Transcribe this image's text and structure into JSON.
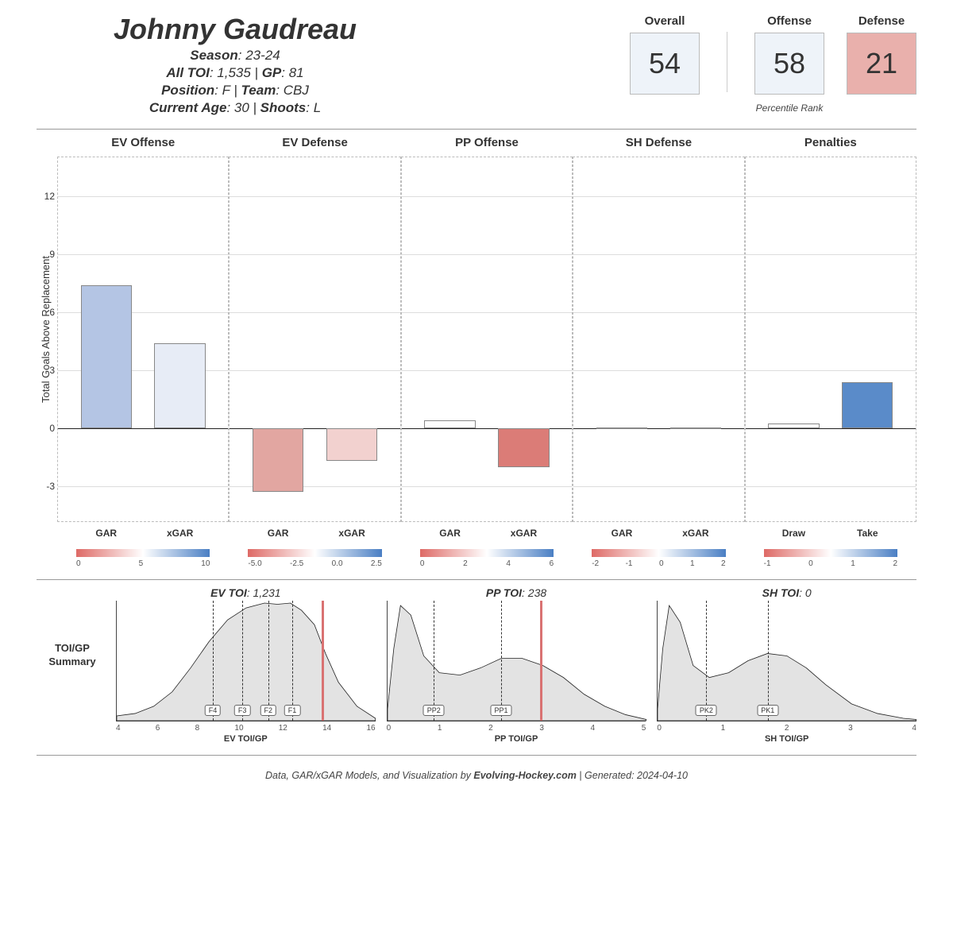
{
  "header": {
    "name": "Johnny Gaudreau",
    "lines": [
      [
        {
          "k": "Season",
          "v": "23-24"
        }
      ],
      [
        {
          "k": "All TOI",
          "v": "1,535"
        },
        {
          "k": "GP",
          "v": "81"
        }
      ],
      [
        {
          "k": "Position",
          "v": "F"
        },
        {
          "k": "Team",
          "v": "CBJ"
        }
      ],
      [
        {
          "k": "Current Age",
          "v": "30"
        },
        {
          "k": "Shoots",
          "v": "L"
        }
      ]
    ]
  },
  "ranks": {
    "sub": "Percentile Rank",
    "items": [
      {
        "label": "Overall",
        "value": "54",
        "bg": "#eef3f9"
      },
      {
        "label": "Offense",
        "value": "58",
        "bg": "#eef3f9"
      },
      {
        "label": "Defense",
        "value": "21",
        "bg": "#e9b0ac"
      }
    ]
  },
  "bar_chart": {
    "y_label": "Total Goals Above Replacement",
    "y_min": -4.8,
    "y_max": 14.0,
    "y_ticks": [
      -3,
      0,
      3,
      6,
      9,
      12
    ],
    "panels": [
      {
        "title": "EV Offense",
        "cats": [
          "GAR",
          "xGAR"
        ],
        "bars": [
          {
            "v": 7.4,
            "c": "#b4c5e4"
          },
          {
            "v": 4.4,
            "c": "#e7ecf6"
          }
        ]
      },
      {
        "title": "EV Defense",
        "cats": [
          "GAR",
          "xGAR"
        ],
        "bars": [
          {
            "v": -3.3,
            "c": "#e2a6a1"
          },
          {
            "v": -1.7,
            "c": "#f2d1cf"
          }
        ]
      },
      {
        "title": "PP Offense",
        "cats": [
          "GAR",
          "xGAR"
        ],
        "bars": [
          {
            "v": 0.4,
            "c": "#fefefe"
          },
          {
            "v": -2.0,
            "c": "#db7c77"
          }
        ]
      },
      {
        "title": "SH Defense",
        "cats": [
          "GAR",
          "xGAR"
        ],
        "bars": [
          {
            "v": 0.05,
            "c": "#fefefe"
          },
          {
            "v": 0.05,
            "c": "#fefefe"
          }
        ]
      },
      {
        "title": "Penalties",
        "cats": [
          "Draw",
          "Take"
        ],
        "bars": [
          {
            "v": 0.25,
            "c": "#fefefe"
          },
          {
            "v": 2.4,
            "c": "#5a8bc9"
          }
        ]
      }
    ],
    "gradients": [
      {
        "ticks": [
          "0",
          "5",
          "10"
        ]
      },
      {
        "ticks": [
          "-5.0",
          "-2.5",
          "0.0",
          "2.5"
        ]
      },
      {
        "ticks": [
          "0",
          "2",
          "4",
          "6"
        ]
      },
      {
        "ticks": [
          "-2",
          "-1",
          "0",
          "1",
          "2"
        ]
      },
      {
        "ticks": [
          "-1",
          "0",
          "1",
          "2"
        ]
      }
    ]
  },
  "density": {
    "row_label": "TOI/GP Summary",
    "panels": [
      {
        "title_k": "EV TOI",
        "title_v": "1,231",
        "x_min": 4,
        "x_max": 18,
        "x_ticks": [
          "4",
          "6",
          "8",
          "10",
          "12",
          "14",
          "16"
        ],
        "x_label": "EV TOI/GP",
        "curve": [
          [
            4,
            4
          ],
          [
            5,
            6
          ],
          [
            6,
            12
          ],
          [
            7,
            24
          ],
          [
            8,
            44
          ],
          [
            9,
            66
          ],
          [
            10,
            84
          ],
          [
            11,
            94
          ],
          [
            12,
            98
          ],
          [
            12.7,
            97
          ],
          [
            13.4,
            98
          ],
          [
            14,
            92
          ],
          [
            14.7,
            80
          ],
          [
            15.3,
            56
          ],
          [
            16,
            32
          ],
          [
            17,
            12
          ],
          [
            18,
            2
          ]
        ],
        "vlines": [
          {
            "x": 9.2,
            "lab": "F4"
          },
          {
            "x": 10.8,
            "lab": "F3"
          },
          {
            "x": 12.2,
            "lab": "F2"
          },
          {
            "x": 13.5,
            "lab": "F1"
          }
        ],
        "marker_x": 15.1
      },
      {
        "title_k": "PP TOI",
        "title_v": "238",
        "x_min": 0,
        "x_max": 5,
        "x_ticks": [
          "0",
          "1",
          "2",
          "3",
          "4",
          "5"
        ],
        "x_label": "PP TOI/GP",
        "curve": [
          [
            0,
            10
          ],
          [
            0.12,
            60
          ],
          [
            0.25,
            96
          ],
          [
            0.45,
            88
          ],
          [
            0.7,
            54
          ],
          [
            1.0,
            40
          ],
          [
            1.4,
            38
          ],
          [
            1.8,
            44
          ],
          [
            2.2,
            52
          ],
          [
            2.6,
            52
          ],
          [
            3.0,
            46
          ],
          [
            3.4,
            36
          ],
          [
            3.8,
            22
          ],
          [
            4.2,
            12
          ],
          [
            4.6,
            5
          ],
          [
            5,
            1
          ]
        ],
        "vlines": [
          {
            "x": 0.9,
            "lab": "PP2"
          },
          {
            "x": 2.2,
            "lab": "PP1"
          }
        ],
        "marker_x": 2.95
      },
      {
        "title_k": "SH TOI",
        "title_v": "0",
        "x_min": 0,
        "x_max": 4,
        "x_ticks": [
          "0",
          "1",
          "2",
          "3",
          "4"
        ],
        "x_label": "SH TOI/GP",
        "curve": [
          [
            0,
            10
          ],
          [
            0.08,
            60
          ],
          [
            0.18,
            96
          ],
          [
            0.35,
            82
          ],
          [
            0.55,
            46
          ],
          [
            0.8,
            36
          ],
          [
            1.1,
            40
          ],
          [
            1.4,
            50
          ],
          [
            1.7,
            56
          ],
          [
            2.0,
            54
          ],
          [
            2.3,
            44
          ],
          [
            2.6,
            30
          ],
          [
            3.0,
            14
          ],
          [
            3.4,
            6
          ],
          [
            3.8,
            2
          ],
          [
            4,
            1
          ]
        ],
        "vlines": [
          {
            "x": 0.75,
            "lab": "PK2"
          },
          {
            "x": 1.7,
            "lab": "PK1"
          }
        ],
        "marker_x": null
      }
    ]
  },
  "footer": {
    "pre": "Data, GAR/xGAR Models, and Visualization by ",
    "site": "Evolving-Hockey.com",
    "post": " | Generated: 2024-04-10"
  }
}
